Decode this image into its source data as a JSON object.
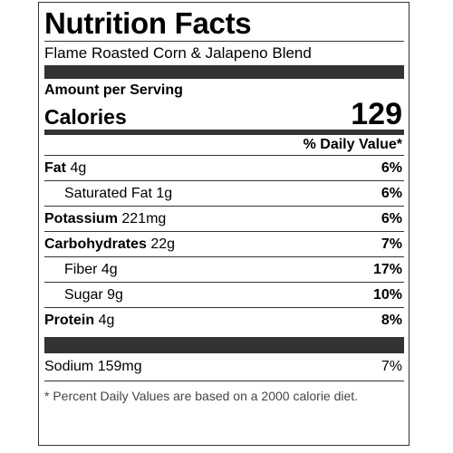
{
  "label": {
    "title": "Nutrition Facts",
    "product": "Flame Roasted Corn & Jalapeno Blend",
    "amount_per_serving": "Amount per Serving",
    "calories_label": "Calories",
    "calories_value": "129",
    "dv_header": "% Daily Value*",
    "nutrients": [
      {
        "name": "Fat",
        "amount": "4g",
        "pct": "6%"
      },
      {
        "name": "Saturated Fat",
        "amount": "1g",
        "pct": "6%"
      },
      {
        "name": "Potassium",
        "amount": "221mg",
        "pct": "6%"
      },
      {
        "name": "Carbohydrates",
        "amount": "22g",
        "pct": "7%"
      },
      {
        "name": "Fiber",
        "amount": "4g",
        "pct": "17%"
      },
      {
        "name": "Sugar",
        "amount": "9g",
        "pct": "10%"
      },
      {
        "name": "Protein",
        "amount": "4g",
        "pct": "8%"
      }
    ],
    "sodium": {
      "name": "Sodium",
      "amount": "159mg",
      "pct": "7%"
    },
    "footnote": "* Percent Daily Values are based on a 2000 calorie diet."
  }
}
